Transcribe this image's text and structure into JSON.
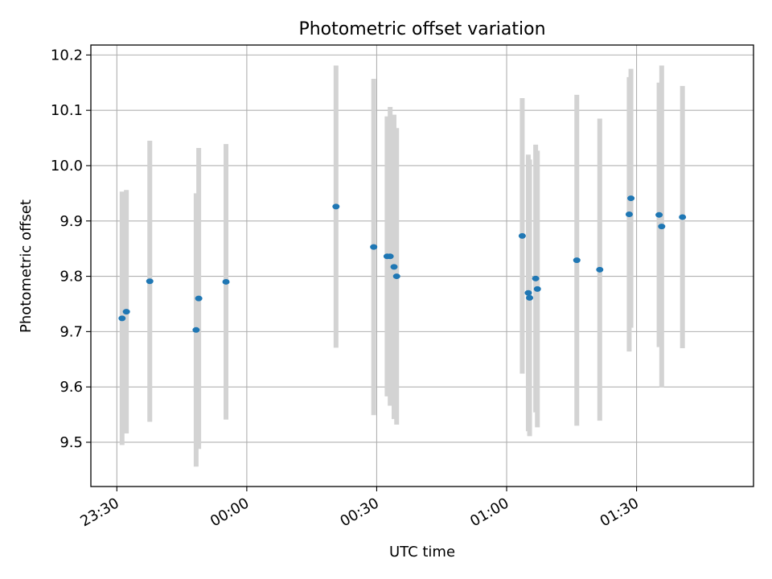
{
  "chart_data": {
    "type": "scatter",
    "title": "Photometric offset variation",
    "xlabel": "UTC time",
    "ylabel": "Photometric offset",
    "x_ticks": [
      "23:30",
      "00:00",
      "00:30",
      "01:00",
      "01:30"
    ],
    "x_tick_minutes": [
      -30,
      0,
      30,
      60,
      90
    ],
    "x_range_minutes": [
      -36,
      117
    ],
    "y_ticks": [
      9.5,
      9.6,
      9.7,
      9.8,
      9.9,
      10.0,
      10.1,
      10.2
    ],
    "ylim": [
      9.42,
      10.218
    ],
    "grid": true,
    "colors": {
      "point": "#1f77b4",
      "errorbar": "#d3d3d3",
      "grid": "#b0b0b0"
    },
    "points": [
      {
        "minute": -28.8,
        "y": 9.724,
        "yerr": 0.229
      },
      {
        "minute": -27.8,
        "y": 9.736,
        "yerr": 0.22
      },
      {
        "minute": -22.4,
        "y": 9.791,
        "yerr": 0.254
      },
      {
        "minute": -11.7,
        "y": 9.703,
        "yerr": 0.247
      },
      {
        "minute": -11.1,
        "y": 9.76,
        "yerr": 0.272
      },
      {
        "minute": -4.8,
        "y": 9.79,
        "yerr": 0.249
      },
      {
        "minute": 20.6,
        "y": 9.926,
        "yerr": 0.255
      },
      {
        "minute": 29.3,
        "y": 9.853,
        "yerr": 0.304
      },
      {
        "minute": 32.4,
        "y": 9.836,
        "yerr": 0.253
      },
      {
        "minute": 33.1,
        "y": 9.836,
        "yerr": 0.27
      },
      {
        "minute": 34.0,
        "y": 9.817,
        "yerr": 0.275
      },
      {
        "minute": 34.6,
        "y": 9.8,
        "yerr": 0.268
      },
      {
        "minute": 63.6,
        "y": 9.873,
        "yerr": 0.249
      },
      {
        "minute": 65.0,
        "y": 9.77,
        "yerr": 0.25
      },
      {
        "minute": 65.3,
        "y": 9.761,
        "yerr": 0.25
      },
      {
        "minute": 66.7,
        "y": 9.796,
        "yerr": 0.242
      },
      {
        "minute": 67.1,
        "y": 9.777,
        "yerr": 0.25
      },
      {
        "minute": 76.2,
        "y": 9.829,
        "yerr": 0.299
      },
      {
        "minute": 81.5,
        "y": 9.812,
        "yerr": 0.273
      },
      {
        "minute": 88.3,
        "y": 9.912,
        "yerr": 0.248
      },
      {
        "minute": 88.7,
        "y": 9.941,
        "yerr": 0.234
      },
      {
        "minute": 95.2,
        "y": 9.911,
        "yerr": 0.239
      },
      {
        "minute": 95.8,
        "y": 9.89,
        "yerr": 0.291
      },
      {
        "minute": 100.6,
        "y": 9.907,
        "yerr": 0.237
      }
    ]
  }
}
